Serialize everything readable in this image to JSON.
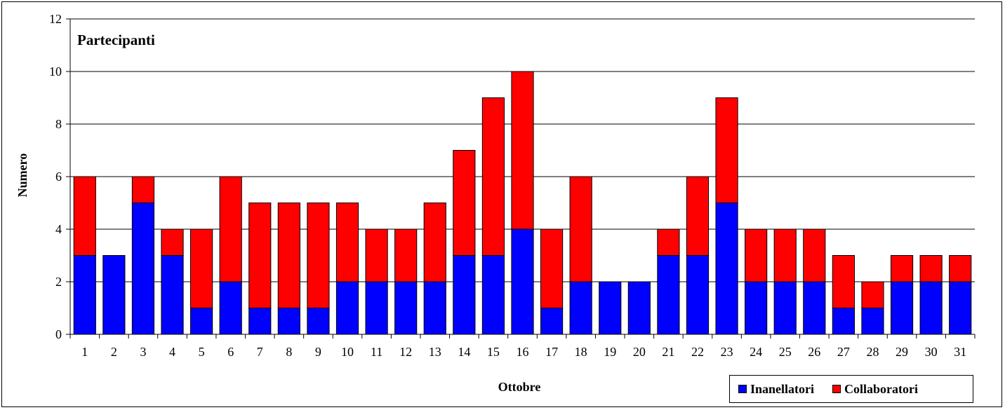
{
  "chart_data": {
    "type": "bar",
    "stacked": true,
    "title": "Partecipanti",
    "xlabel": "Ottobre",
    "ylabel": "Numero",
    "ylim": [
      0,
      12
    ],
    "yticks": [
      "0",
      "2",
      "4",
      "6",
      "8",
      "10",
      "12"
    ],
    "grid": true,
    "legend_position": "bottom-right",
    "categories": [
      "1",
      "2",
      "3",
      "4",
      "5",
      "6",
      "7",
      "8",
      "9",
      "10",
      "11",
      "12",
      "13",
      "14",
      "15",
      "16",
      "17",
      "18",
      "19",
      "20",
      "21",
      "22",
      "23",
      "24",
      "25",
      "26",
      "27",
      "28",
      "29",
      "30",
      "31"
    ],
    "series": [
      {
        "name": "Inanellatori",
        "color": "#0000ff",
        "values": [
          3,
          3,
          5,
          3,
          1,
          2,
          1,
          1,
          1,
          2,
          2,
          2,
          2,
          3,
          3,
          4,
          1,
          2,
          2,
          2,
          3,
          3,
          5,
          2,
          2,
          2,
          1,
          1,
          2,
          2,
          2
        ]
      },
      {
        "name": "Collaboratori",
        "color": "#ff0000",
        "values": [
          3,
          0,
          1,
          1,
          3,
          4,
          4,
          4,
          4,
          3,
          2,
          2,
          3,
          4,
          6,
          6,
          3,
          4,
          0,
          0,
          1,
          3,
          4,
          2,
          2,
          2,
          2,
          1,
          1,
          1,
          1
        ]
      }
    ]
  }
}
